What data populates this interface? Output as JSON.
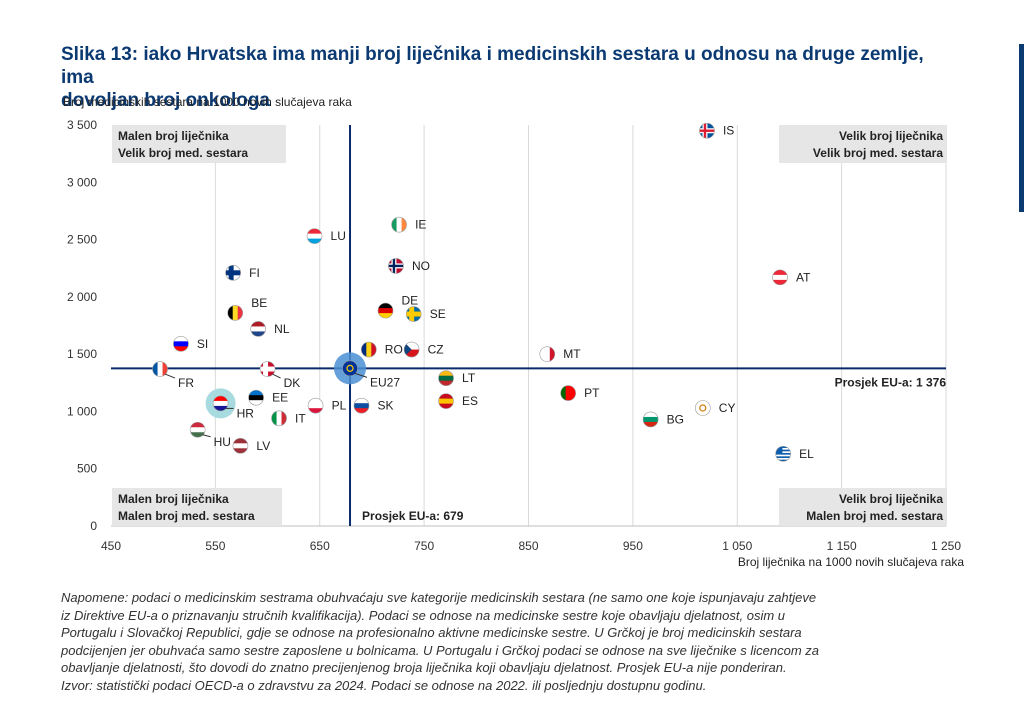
{
  "title_line1": "Slika 13: iako Hrvatska ima manji broj liječnika i medicinskih sestara u odnosu na druge zemlje, ima",
  "title_line2": "dovoljan broj onkologa",
  "notes": [
    "Napomene: podaci o medicinskim sestrama obuhvaćaju sve kategorije medicinskih sestara (ne samo one koje ispunjavaju zahtjeve",
    "iz Direktive EU-a o priznavanju stručnih kvalifikacija). Podaci se odnose na medicinske sestre koje obavljaju djelatnost, osim u",
    "Portugalu i Slovačkoj Republici, gdje se odnose na profesionalno aktivne medicinske sestre. U Grčkoj je broj medicinskih sestara",
    "podcijenjen jer obuhvaća samo sestre zaposlene u bolnicama. U Portugalu i Grčkoj podaci se odnose na sve liječnike s licencom za",
    "obavljanje djelatnosti, što dovodi do znatno precijenjenog broja liječnika koji obavljaju djelatnost. Prosjek EU-a nije ponderiran.",
    "Izvor: statistički podaci OECD-a o zdravstvu za 2024. Podaci se odnose na 2022. ili posljednju dostupnu godinu."
  ],
  "chart_data": {
    "type": "scatter",
    "xlabel": "Broj liječnika na 1000 novih slučajeva raka",
    "ylabel": "Broj medicinskih sestara na 1000 novih slučajeva raka",
    "xlim": [
      450,
      1250
    ],
    "ylim": [
      0,
      3500
    ],
    "xticks": [
      450,
      550,
      650,
      750,
      850,
      950,
      1050,
      1150,
      1250
    ],
    "xtick_labels": [
      "450",
      "550",
      "650",
      "750",
      "850",
      "950",
      "1 050",
      "1 150",
      "1 250"
    ],
    "yticks": [
      0,
      500,
      1000,
      1500,
      2000,
      2500,
      3000,
      3500
    ],
    "ytick_labels": [
      "0",
      "500",
      "1 000",
      "1 500",
      "2 000",
      "2 500",
      "3 000",
      "3 500"
    ],
    "grid": "vertical",
    "eu_avg_x": 679,
    "eu_avg_y": 1376,
    "eu_avg_x_label": "Prosjek EU-a: 679",
    "eu_avg_y_label": "Prosjek EU-a: 1 376",
    "quadrants": {
      "top_left": [
        "Malen broj liječnika",
        "Velik broj med. sestara"
      ],
      "top_right": [
        "Velik broj liječnika",
        "Velik broj med. sestara"
      ],
      "bottom_left": [
        "Malen broj liječnika",
        "Malen broj med. sestara"
      ],
      "bottom_right": [
        "Velik broj liječnika",
        "Malen broj med. sestara"
      ]
    },
    "points": [
      {
        "label": "IS",
        "x": 1021,
        "y": 3450
      },
      {
        "label": "LU",
        "x": 645,
        "y": 2530
      },
      {
        "label": "IE",
        "x": 726,
        "y": 2630
      },
      {
        "label": "NO",
        "x": 723,
        "y": 2270
      },
      {
        "label": "FI",
        "x": 567,
        "y": 2210
      },
      {
        "label": "AT",
        "x": 1091,
        "y": 2170
      },
      {
        "label": "BE",
        "x": 569,
        "y": 1860
      },
      {
        "label": "DE",
        "x": 713,
        "y": 1880
      },
      {
        "label": "SE",
        "x": 740,
        "y": 1850
      },
      {
        "label": "NL",
        "x": 591,
        "y": 1720
      },
      {
        "label": "SI",
        "x": 517,
        "y": 1590
      },
      {
        "label": "RO",
        "x": 697,
        "y": 1540
      },
      {
        "label": "CZ",
        "x": 738,
        "y": 1540
      },
      {
        "label": "MT",
        "x": 868,
        "y": 1500
      },
      {
        "label": "FR",
        "x": 497,
        "y": 1370
      },
      {
        "label": "DK",
        "x": 600,
        "y": 1370
      },
      {
        "label": "EU27",
        "x": 679,
        "y": 1376
      },
      {
        "label": "LT",
        "x": 771,
        "y": 1290
      },
      {
        "label": "PT",
        "x": 888,
        "y": 1160
      },
      {
        "label": "EE",
        "x": 589,
        "y": 1120
      },
      {
        "label": "ES",
        "x": 771,
        "y": 1090
      },
      {
        "label": "HR",
        "x": 555,
        "y": 1070
      },
      {
        "label": "PL",
        "x": 646,
        "y": 1050
      },
      {
        "label": "SK",
        "x": 690,
        "y": 1050
      },
      {
        "label": "CY",
        "x": 1017,
        "y": 1030
      },
      {
        "label": "IT",
        "x": 611,
        "y": 940
      },
      {
        "label": "BG",
        "x": 967,
        "y": 930
      },
      {
        "label": "HU",
        "x": 533,
        "y": 840
      },
      {
        "label": "LV",
        "x": 574,
        "y": 700
      },
      {
        "label": "EL",
        "x": 1094,
        "y": 630
      }
    ]
  },
  "colors": {
    "title": "#0b3a73",
    "avg_line": "#0b2a6b",
    "grid": "#d9d9d9",
    "quadrant_box": "#e6e6e6",
    "hr_highlight": "#a8dbe0",
    "eu_highlight": "#4b8fd3"
  }
}
